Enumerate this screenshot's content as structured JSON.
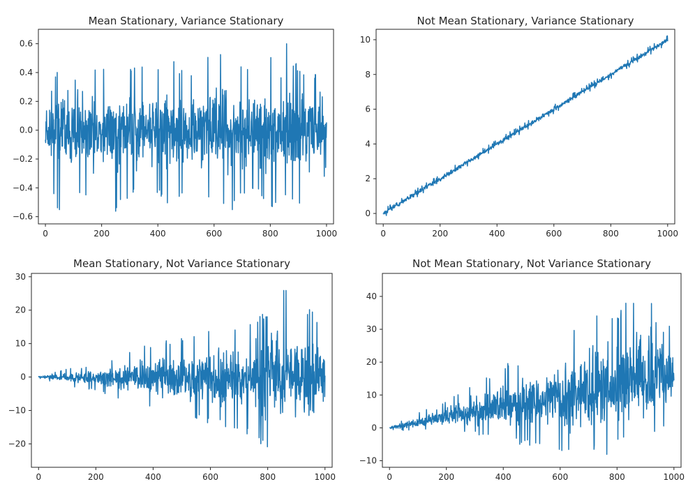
{
  "chart_data": [
    {
      "type": "line",
      "title": "Mean Stationary, Variance Stationary",
      "xlabel": "",
      "ylabel": "",
      "xlim": [
        -25,
        1025
      ],
      "ylim": [
        -0.65,
        0.7
      ],
      "xticks": [
        0,
        200,
        400,
        600,
        800,
        1000
      ],
      "yticks": [
        -0.6,
        -0.4,
        -0.2,
        0.0,
        0.2,
        0.4,
        0.6
      ],
      "ytick_labels": [
        "−0.6",
        "−0.4",
        "−0.2",
        "0.0",
        "0.2",
        "0.4",
        "0.6"
      ],
      "n_points": 1001,
      "color": "#1f77b4",
      "series": [
        {
          "x": [
            0,
            50,
            100,
            150,
            200,
            250,
            300,
            350,
            400,
            450,
            500,
            550,
            600,
            650,
            700,
            750,
            800,
            850,
            900,
            950,
            1000
          ],
          "y_mean": [
            0,
            0,
            0,
            0,
            0,
            0,
            0,
            0,
            0,
            0,
            0,
            0,
            0,
            0,
            0,
            0,
            0,
            0,
            0,
            0,
            0
          ],
          "y_max": [
            0.52,
            0.38,
            0.62,
            0.42,
            0.45,
            0.38,
            0.48,
            0.5,
            0.45,
            0.52,
            0.4,
            0.45,
            0.66,
            0.42,
            0.45,
            0.4,
            0.5,
            0.64,
            0.45,
            0.45,
            0.16
          ],
          "y_min": [
            -0.32,
            -0.58,
            -0.38,
            -0.52,
            -0.5,
            -0.61,
            -0.45,
            -0.4,
            -0.48,
            -0.55,
            -0.42,
            -0.5,
            -0.45,
            -0.59,
            -0.48,
            -0.42,
            -0.55,
            -0.45,
            -0.5,
            -0.58,
            -0.28
          ]
        }
      ]
    },
    {
      "type": "line",
      "title": "Not Mean Stationary, Variance Stationary",
      "xlabel": "",
      "ylabel": "",
      "xlim": [
        -25,
        1025
      ],
      "ylim": [
        -0.6,
        10.6
      ],
      "xticks": [
        0,
        200,
        400,
        600,
        800,
        1000
      ],
      "yticks": [
        0,
        2,
        4,
        6,
        8,
        10
      ],
      "ytick_labels": [
        "0",
        "2",
        "4",
        "6",
        "8",
        "10"
      ],
      "n_points": 1001,
      "color": "#1f77b4",
      "series": [
        {
          "x": [
            0,
            50,
            100,
            150,
            200,
            250,
            300,
            350,
            400,
            450,
            500,
            550,
            600,
            650,
            700,
            750,
            800,
            850,
            900,
            950,
            1000
          ],
          "y_mean": [
            0,
            0.5,
            1,
            1.5,
            2,
            2.5,
            3,
            3.5,
            4,
            4.5,
            5,
            5.5,
            6,
            6.5,
            7,
            7.5,
            8,
            8.5,
            9,
            9.5,
            10
          ],
          "y_max": [
            0.25,
            0.75,
            1.25,
            1.75,
            2.25,
            2.75,
            3.25,
            3.75,
            4.25,
            4.75,
            5.25,
            5.75,
            6.25,
            6.75,
            7.25,
            7.75,
            8.25,
            8.75,
            9.25,
            9.75,
            10.25
          ],
          "y_min": [
            -0.25,
            0.25,
            0.75,
            1.25,
            1.75,
            2.25,
            2.75,
            3.25,
            3.75,
            4.25,
            4.75,
            5.25,
            5.75,
            6.25,
            6.75,
            7.25,
            7.75,
            8.25,
            8.75,
            9.25,
            9.75
          ]
        }
      ]
    },
    {
      "type": "line",
      "title": "Mean Stationary, Not Variance Stationary",
      "xlabel": "",
      "ylabel": "",
      "xlim": [
        -25,
        1025
      ],
      "ylim": [
        -27,
        31
      ],
      "xticks": [
        0,
        200,
        400,
        600,
        800,
        1000
      ],
      "yticks": [
        -20,
        -10,
        0,
        10,
        20,
        30
      ],
      "ytick_labels": [
        "−20",
        "−10",
        "0",
        "10",
        "20",
        "30"
      ],
      "n_points": 1001,
      "color": "#1f77b4",
      "series": [
        {
          "x": [
            0,
            50,
            100,
            150,
            200,
            250,
            300,
            350,
            400,
            450,
            500,
            550,
            600,
            650,
            700,
            750,
            800,
            850,
            900,
            950,
            1000
          ],
          "y_mean": [
            0,
            0,
            0,
            0,
            0,
            0,
            0,
            0,
            0,
            0,
            0,
            0,
            0,
            0,
            0,
            0,
            0,
            0,
            0,
            0,
            0
          ],
          "y_max": [
            0.3,
            1.5,
            2.5,
            3,
            4,
            5.5,
            7,
            9,
            10,
            11,
            12,
            13,
            15,
            15,
            16,
            18,
            20,
            29,
            20,
            22,
            13
          ],
          "y_min": [
            -0.3,
            -1.5,
            -2.5,
            -3.5,
            -4,
            -6,
            -7,
            -9,
            -10,
            -11,
            -12,
            -13,
            -14,
            -15,
            -17,
            -18,
            -22,
            -20,
            -22,
            -24,
            -12
          ]
        }
      ]
    },
    {
      "type": "line",
      "title": "Not Mean Stationary, Not Variance Stationary",
      "xlabel": "",
      "ylabel": "",
      "xlim": [
        -25,
        1025
      ],
      "ylim": [
        -12,
        47
      ],
      "xticks": [
        0,
        200,
        400,
        600,
        800,
        1000
      ],
      "yticks": [
        -10,
        0,
        10,
        20,
        30,
        40
      ],
      "ytick_labels": [
        "−10",
        "0",
        "10",
        "20",
        "30",
        "40"
      ],
      "n_points": 1001,
      "color": "#1f77b4",
      "series": [
        {
          "x": [
            0,
            50,
            100,
            150,
            200,
            250,
            300,
            350,
            400,
            450,
            500,
            550,
            600,
            650,
            700,
            750,
            800,
            850,
            900,
            950,
            1000
          ],
          "y_mean": [
            0,
            0.8,
            1.6,
            2.4,
            3.2,
            4,
            4.8,
            5.6,
            6.4,
            7.2,
            8,
            8.8,
            9.6,
            10.4,
            11.2,
            12,
            12.8,
            13.6,
            14.4,
            15.2,
            16
          ],
          "y_max": [
            0.5,
            2.5,
            4.5,
            6.5,
            8.5,
            11,
            13.5,
            16,
            20,
            20,
            24,
            24,
            28,
            30,
            36,
            38,
            36,
            40,
            40,
            44,
            28
          ],
          "y_min": [
            -0.5,
            -0.8,
            -0.5,
            -0.3,
            -0.5,
            -1,
            -2,
            -3,
            -4,
            -5,
            -6,
            -7,
            -8,
            -7,
            -6,
            -10,
            -5,
            -6,
            -4,
            -2,
            4
          ]
        }
      ]
    }
  ]
}
